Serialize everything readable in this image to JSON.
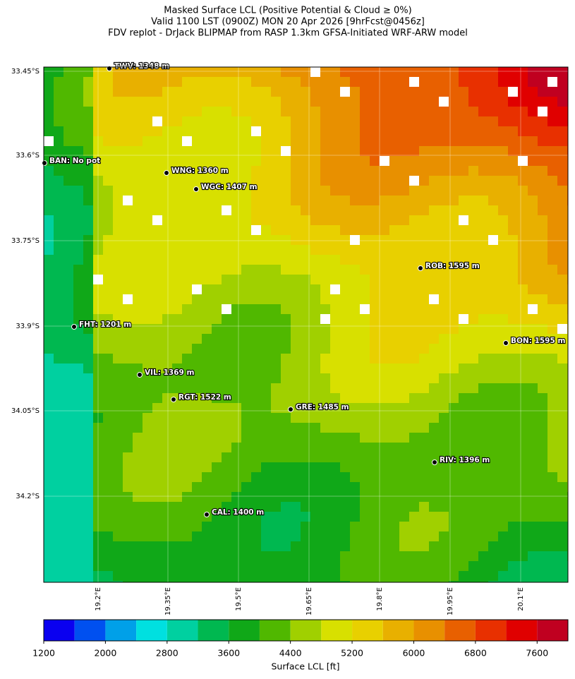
{
  "header": {
    "lines": [
      "Masked Surface LCL (Positive Potential & Cloud ≥ 0%)",
      "Valid 1100 LST (0900Z) MON 20 Apr 2026 [9hrFcst@0456z]",
      "FDV replot - DrJack BLIPMAP from RASP 1.3km GFSA-Initiated WRF-ARW model"
    ]
  },
  "map": {
    "lat_labels": [
      "33.45°S",
      "33.6°S",
      "33.75°S",
      "33.9°S",
      "34.05°S",
      "34.2°S"
    ],
    "lon_labels": [
      "19.2°E",
      "19.35°E",
      "19.5°E",
      "19.65°E",
      "19.8°E",
      "19.95°E",
      "20.1°E"
    ],
    "stations": [
      "TWV: 1348 m",
      "BAN: No pot",
      "WNG: 1360 m",
      "WGC: 1407 m",
      "ROB: 1595 m",
      "FHT: 1201 m",
      "BON: 1595 m",
      "VIL: 1369 m",
      "RGT: 1522 m",
      "GRE: 1485 m",
      "RIV: 1396 m",
      "CAL: 1400 m"
    ]
  },
  "colorbar": {
    "label": "Surface LCL [ft]",
    "lim": [
      1200,
      8000
    ],
    "bounds": [
      1200,
      1600,
      2000,
      2400,
      2800,
      3200,
      3600,
      4000,
      4400,
      4800,
      5200,
      5600,
      6000,
      6400,
      6800,
      7200,
      7600,
      8000
    ],
    "colors": [
      "#0a00f0",
      "#0050f0",
      "#00a0e8",
      "#00e0e0",
      "#00d0a0",
      "#00b850",
      "#10a818",
      "#50b800",
      "#a0d000",
      "#d8e000",
      "#e8d000",
      "#e8b000",
      "#e89000",
      "#e86000",
      "#e83000",
      "#e00000",
      "#c00020"
    ],
    "ticks": [
      1200,
      2000,
      2800,
      3600,
      4400,
      5200,
      6000,
      6800,
      7600
    ]
  }
}
